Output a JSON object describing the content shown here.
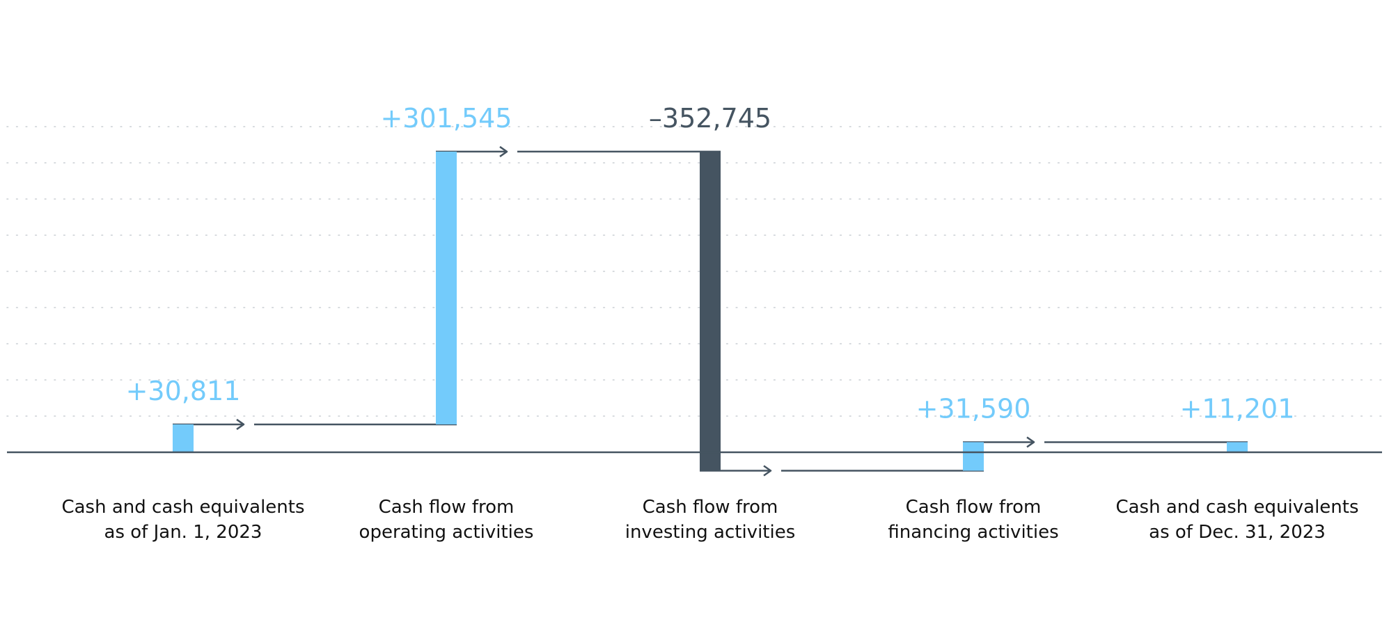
{
  "chart_data": {
    "type": "bar",
    "subtype": "waterfall",
    "categories": [
      [
        "Cash and cash equivalents",
        "as of Jan. 1, 2023"
      ],
      [
        "Cash flow from",
        "operating activities"
      ],
      [
        "Cash flow from",
        "investing activities"
      ],
      [
        "Cash flow from",
        "financing activities"
      ],
      [
        "Cash and cash equivalents",
        "as of Dec. 31, 2023"
      ]
    ],
    "values": [
      30811,
      301545,
      -352745,
      31590,
      11201
    ],
    "value_labels": [
      "+30,811",
      "+301,545",
      "–352,745",
      "+31,590",
      "+11,201"
    ],
    "bar_kinds": [
      "total",
      "delta",
      "delta",
      "delta",
      "total"
    ],
    "ylim": [
      -28000,
      400000
    ],
    "grid": true,
    "grid_style": "dotted",
    "colors": {
      "positive": "#73CBFB",
      "negative": "#455461",
      "positive_label": "#73CBFB",
      "negative_label": "#455461",
      "connector": "#455461",
      "baseline": "#455461",
      "grid": "#C9CED3"
    }
  }
}
